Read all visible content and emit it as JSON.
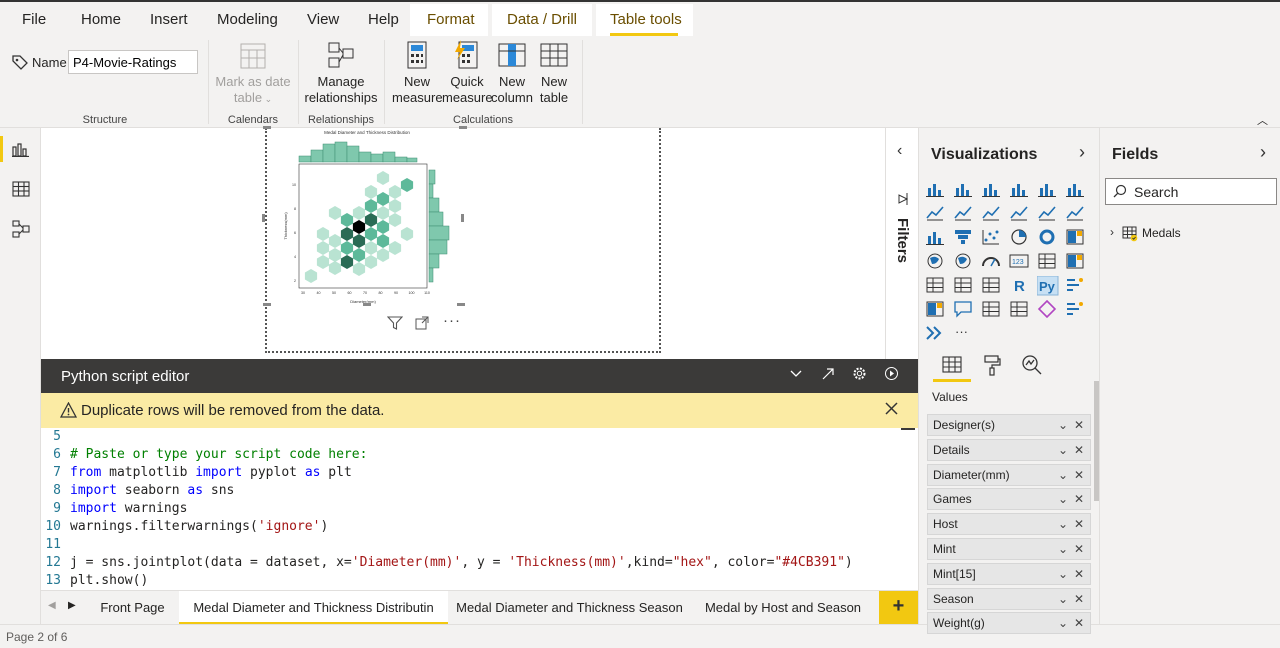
{
  "menu": {
    "items": [
      "File",
      "Home",
      "Insert",
      "Modeling",
      "View",
      "Help"
    ],
    "context": [
      "Format",
      "Data / Drill",
      "Table tools"
    ],
    "active": "Table tools"
  },
  "ribbon": {
    "name_label": "Name",
    "name_value": "P4-Movie-Ratings",
    "groups": {
      "structure": "Structure",
      "calendars": "Calendars",
      "relationships": "Relationships",
      "calculations": "Calculations"
    },
    "mark_date_1": "Mark as date",
    "mark_date_2": "table",
    "manage_1": "Manage",
    "manage_2": "relationships",
    "new_measure_1": "New",
    "new_measure_2": "measure",
    "quick_measure_1": "Quick",
    "quick_measure_2": "measure",
    "new_column_1": "New",
    "new_column_2": "column",
    "new_table_1": "New",
    "new_table_2": "table"
  },
  "visual": {
    "title": "Medal Diameter and Thickness Distribution",
    "xlabel": "Diameter(mm)",
    "ylabel": "Thickness(mm)",
    "xticks": [
      "30",
      "40",
      "50",
      "60",
      "70",
      "80",
      "90",
      "100",
      "110"
    ],
    "yticks": [
      "2",
      "4",
      "6",
      "8",
      "10"
    ],
    "color": "#4CB391"
  },
  "python_editor": {
    "title": "Python script editor",
    "warning": "Duplicate rows will be removed from the data.",
    "lines": [
      {
        "n": "5",
        "segs": []
      },
      {
        "n": "6",
        "segs": [
          {
            "t": "# Paste or type your script code here:",
            "c": "cm"
          }
        ]
      },
      {
        "n": "7",
        "segs": [
          {
            "t": "from",
            "c": "kw"
          },
          {
            "t": " matplotlib ",
            "c": ""
          },
          {
            "t": "import",
            "c": "kw"
          },
          {
            "t": " pyplot ",
            "c": ""
          },
          {
            "t": "as",
            "c": "kw"
          },
          {
            "t": " plt",
            "c": ""
          }
        ]
      },
      {
        "n": "8",
        "segs": [
          {
            "t": "import",
            "c": "kw"
          },
          {
            "t": " seaborn ",
            "c": ""
          },
          {
            "t": "as",
            "c": "kw"
          },
          {
            "t": " sns",
            "c": ""
          }
        ]
      },
      {
        "n": "9",
        "segs": [
          {
            "t": "import",
            "c": "kw"
          },
          {
            "t": " warnings",
            "c": ""
          }
        ]
      },
      {
        "n": "10",
        "segs": [
          {
            "t": "warnings.filterwarnings(",
            "c": ""
          },
          {
            "t": "'ignore'",
            "c": "st"
          },
          {
            "t": ")",
            "c": ""
          }
        ]
      },
      {
        "n": "11",
        "segs": []
      },
      {
        "n": "12",
        "segs": [
          {
            "t": "j = sns.jointplot(data = dataset, x=",
            "c": ""
          },
          {
            "t": "'Diameter(mm)'",
            "c": "st"
          },
          {
            "t": ", y = ",
            "c": ""
          },
          {
            "t": "'Thickness(mm)'",
            "c": "st"
          },
          {
            "t": ",kind=",
            "c": ""
          },
          {
            "t": "\"hex\"",
            "c": "st"
          },
          {
            "t": ", color=",
            "c": ""
          },
          {
            "t": "\"#4CB391\"",
            "c": "st"
          },
          {
            "t": ")",
            "c": ""
          }
        ]
      },
      {
        "n": "13",
        "segs": [
          {
            "t": "plt.show()",
            "c": ""
          }
        ]
      }
    ]
  },
  "tabs": [
    "Front Page",
    "Medal Diameter and Thickness Distributin",
    "Medal Diameter and Thickness Season",
    "Medal by Host and Season"
  ],
  "add_page": "+",
  "status": "Page 2 of 6",
  "filters_label": "Filters",
  "visualizations": {
    "title": "Visualizations",
    "values_label": "Values",
    "more": "···",
    "wells": [
      "Designer(s)",
      "Details",
      "Diameter(mm)",
      "Games",
      "Host",
      "Mint",
      "Mint[15]",
      "Season",
      "Weight(g)"
    ]
  },
  "fields": {
    "title": "Fields",
    "search_placeholder": "Search",
    "tables": [
      "Medals"
    ]
  },
  "colors": {
    "accent": "#f2c811",
    "hex_light": "#b9e3d2",
    "hex_mid": "#4CB391",
    "hex_dark": "#2a6b55"
  }
}
